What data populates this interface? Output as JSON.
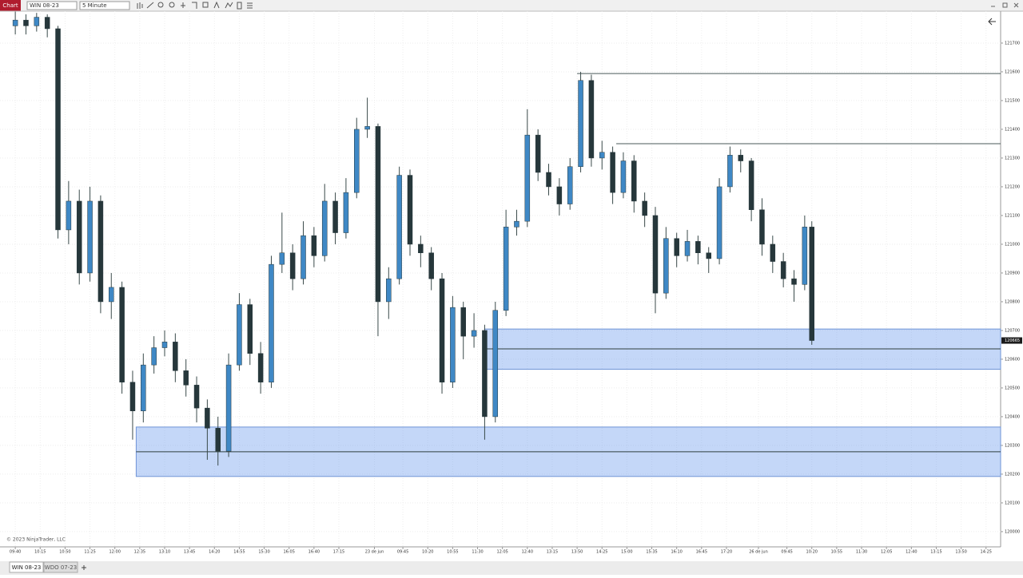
{
  "toolbar": {
    "app": "Chart",
    "instrument": "WIN 08-23",
    "interval": "5 Minute"
  },
  "tabs": [
    "WIN 08-23",
    "WDO 07-23"
  ],
  "chart_data": {
    "type": "candlestick",
    "copyright": "© 2023 NinjaTrader, LLC",
    "up_color": "#3f88c5",
    "down_color": "#26373b",
    "grid": true,
    "xlim": [
      -4.3,
      277.1
    ],
    "ylim": [
      119947,
      121811
    ],
    "yticks": [
      120000,
      120100,
      120200,
      120300,
      120400,
      120500,
      120600,
      120700,
      120800,
      120900,
      121000,
      121100,
      121200,
      121300,
      121400,
      121500,
      121600,
      121700
    ],
    "xticks": [
      {
        "value": 0,
        "label": "09:40"
      },
      {
        "value": 7,
        "label": "10:15"
      },
      {
        "value": 14,
        "label": "10:50"
      },
      {
        "value": 21,
        "label": "11:25"
      },
      {
        "value": 28,
        "label": "12:00"
      },
      {
        "value": 35,
        "label": "12:35"
      },
      {
        "value": 42,
        "label": "13:10"
      },
      {
        "value": 49,
        "label": "13:45"
      },
      {
        "value": 56,
        "label": "14:20"
      },
      {
        "value": 63,
        "label": "14:55"
      },
      {
        "value": 70,
        "label": "15:30"
      },
      {
        "value": 77,
        "label": "16:05"
      },
      {
        "value": 84,
        "label": "16:40"
      },
      {
        "value": 91,
        "label": "17:15"
      },
      {
        "value": 101,
        "label": "23 de jun"
      },
      {
        "value": 109,
        "label": "09:45"
      },
      {
        "value": 116,
        "label": "10:20"
      },
      {
        "value": 123,
        "label": "10:55"
      },
      {
        "value": 130,
        "label": "11:30"
      },
      {
        "value": 137,
        "label": "12:05"
      },
      {
        "value": 144,
        "label": "12:40"
      },
      {
        "value": 151,
        "label": "13:15"
      },
      {
        "value": 158,
        "label": "13:50"
      },
      {
        "value": 165,
        "label": "14:25"
      },
      {
        "value": 172,
        "label": "15:00"
      },
      {
        "value": 179,
        "label": "15:35"
      },
      {
        "value": 186,
        "label": "16:10"
      },
      {
        "value": 193,
        "label": "16:45"
      },
      {
        "value": 200,
        "label": "17:20"
      },
      {
        "value": 209,
        "label": "26 de jun"
      },
      {
        "value": 217,
        "label": "09:45"
      },
      {
        "value": 224,
        "label": "10:20"
      },
      {
        "value": 231,
        "label": "10:55"
      },
      {
        "value": 238,
        "label": "11:30"
      },
      {
        "value": 245,
        "label": "12:05"
      },
      {
        "value": 252,
        "label": "12:40"
      },
      {
        "value": 259,
        "label": "13:15"
      },
      {
        "value": 266,
        "label": "13:50"
      },
      {
        "value": 273,
        "label": "14:25"
      }
    ],
    "x": [
      0,
      3,
      6,
      9,
      12,
      15,
      18,
      21,
      24,
      27,
      30,
      33,
      36,
      39,
      42,
      45,
      48,
      51,
      54,
      57,
      60,
      63,
      66,
      69,
      72,
      75,
      78,
      81,
      84,
      87,
      90,
      93,
      96,
      99,
      102,
      105,
      108,
      111,
      114,
      117,
      120,
      123,
      126,
      129,
      132,
      135,
      138,
      141,
      144,
      147,
      150,
      153,
      156,
      159,
      162,
      165,
      168,
      171,
      174,
      177,
      180,
      183,
      186,
      189,
      192,
      195,
      198,
      201,
      204,
      207,
      210,
      213,
      216,
      219,
      222,
      224
    ],
    "ohlc": [
      [
        121760,
        121810,
        121730,
        121780
      ],
      [
        121780,
        121800,
        121730,
        121760
      ],
      [
        121760,
        121805,
        121740,
        121790
      ],
      [
        121790,
        121800,
        121720,
        121750
      ],
      [
        121750,
        121760,
        121020,
        121050
      ],
      [
        121050,
        121220,
        121000,
        121150
      ],
      [
        121150,
        121190,
        120860,
        120900
      ],
      [
        120900,
        121200,
        120870,
        121150
      ],
      [
        121150,
        121170,
        120760,
        120800
      ],
      [
        120800,
        120900,
        120740,
        120850
      ],
      [
        120850,
        120870,
        120480,
        120520
      ],
      [
        120520,
        120560,
        120320,
        120420
      ],
      [
        120420,
        120620,
        120380,
        120580
      ],
      [
        120580,
        120680,
        120550,
        120640
      ],
      [
        120640,
        120700,
        120610,
        120660
      ],
      [
        120660,
        120690,
        120520,
        120560
      ],
      [
        120560,
        120600,
        120470,
        120510
      ],
      [
        120510,
        120540,
        120380,
        120430
      ],
      [
        120430,
        120460,
        120250,
        120360
      ],
      [
        120360,
        120400,
        120230,
        120280
      ],
      [
        120280,
        120620,
        120260,
        120580
      ],
      [
        120580,
        120830,
        120560,
        120790
      ],
      [
        120790,
        120810,
        120580,
        120620
      ],
      [
        120620,
        120660,
        120480,
        120520
      ],
      [
        120520,
        120960,
        120500,
        120930
      ],
      [
        120930,
        121110,
        120900,
        120970
      ],
      [
        120970,
        121000,
        120840,
        120880
      ],
      [
        120880,
        121080,
        120860,
        121030
      ],
      [
        121030,
        121060,
        120920,
        120960
      ],
      [
        120960,
        121210,
        120940,
        121150
      ],
      [
        121150,
        121180,
        121000,
        121040
      ],
      [
        121040,
        121230,
        121020,
        121180
      ],
      [
        121180,
        121440,
        121160,
        121400
      ],
      [
        121400,
        121510,
        121370,
        121410
      ],
      [
        121410,
        121420,
        120680,
        120800
      ],
      [
        120800,
        120920,
        120740,
        120880
      ],
      [
        120880,
        121270,
        120860,
        121240
      ],
      [
        121240,
        121260,
        120960,
        121000
      ],
      [
        121000,
        121030,
        120920,
        120970
      ],
      [
        120970,
        120990,
        120840,
        120880
      ],
      [
        120880,
        120900,
        120480,
        120520
      ],
      [
        120520,
        120820,
        120500,
        120780
      ],
      [
        120780,
        120800,
        120600,
        120680
      ],
      [
        120680,
        120760,
        120640,
        120700
      ],
      [
        120700,
        120720,
        120320,
        120400
      ],
      [
        120400,
        120800,
        120380,
        120770
      ],
      [
        120770,
        121120,
        120750,
        121060
      ],
      [
        121060,
        121120,
        121030,
        121080
      ],
      [
        121080,
        121470,
        121060,
        121380
      ],
      [
        121380,
        121400,
        121220,
        121250
      ],
      [
        121250,
        121280,
        121170,
        121200
      ],
      [
        121200,
        121230,
        121100,
        121140
      ],
      [
        121140,
        121300,
        121120,
        121270
      ],
      [
        121270,
        121600,
        121250,
        121570
      ],
      [
        121570,
        121590,
        121270,
        121300
      ],
      [
        121300,
        121360,
        121260,
        121320
      ],
      [
        121320,
        121340,
        121140,
        121180
      ],
      [
        121180,
        121320,
        121160,
        121290
      ],
      [
        121290,
        121310,
        121110,
        121150
      ],
      [
        121150,
        121180,
        121060,
        121100
      ],
      [
        121100,
        121130,
        120760,
        120830
      ],
      [
        120830,
        121060,
        120810,
        121020
      ],
      [
        121020,
        121040,
        120920,
        120960
      ],
      [
        120960,
        121050,
        120940,
        121010
      ],
      [
        121010,
        121030,
        120930,
        120970
      ],
      [
        120970,
        120990,
        120900,
        120950
      ],
      [
        120950,
        121230,
        120930,
        121200
      ],
      [
        121200,
        121340,
        121180,
        121310
      ],
      [
        121310,
        121330,
        121250,
        121290
      ],
      [
        121290,
        121300,
        121080,
        121120
      ],
      [
        121120,
        121160,
        120960,
        121000
      ],
      [
        121000,
        121030,
        120900,
        120940
      ],
      [
        120940,
        120970,
        120850,
        120880
      ],
      [
        120880,
        120910,
        120800,
        120860
      ],
      [
        120860,
        121100,
        120840,
        121060
      ],
      [
        121060,
        121080,
        120650,
        120665
      ]
    ],
    "zones": [
      {
        "start": 132,
        "top": 120705,
        "bottom": 120565,
        "mid": 120636
      },
      {
        "start": 34,
        "top": 120364,
        "bottom": 120192,
        "mid": 120278
      }
    ],
    "levels": [
      {
        "start": 158,
        "value": 121594
      },
      {
        "start": 169,
        "value": 121350
      }
    ],
    "last_price": 120665
  }
}
